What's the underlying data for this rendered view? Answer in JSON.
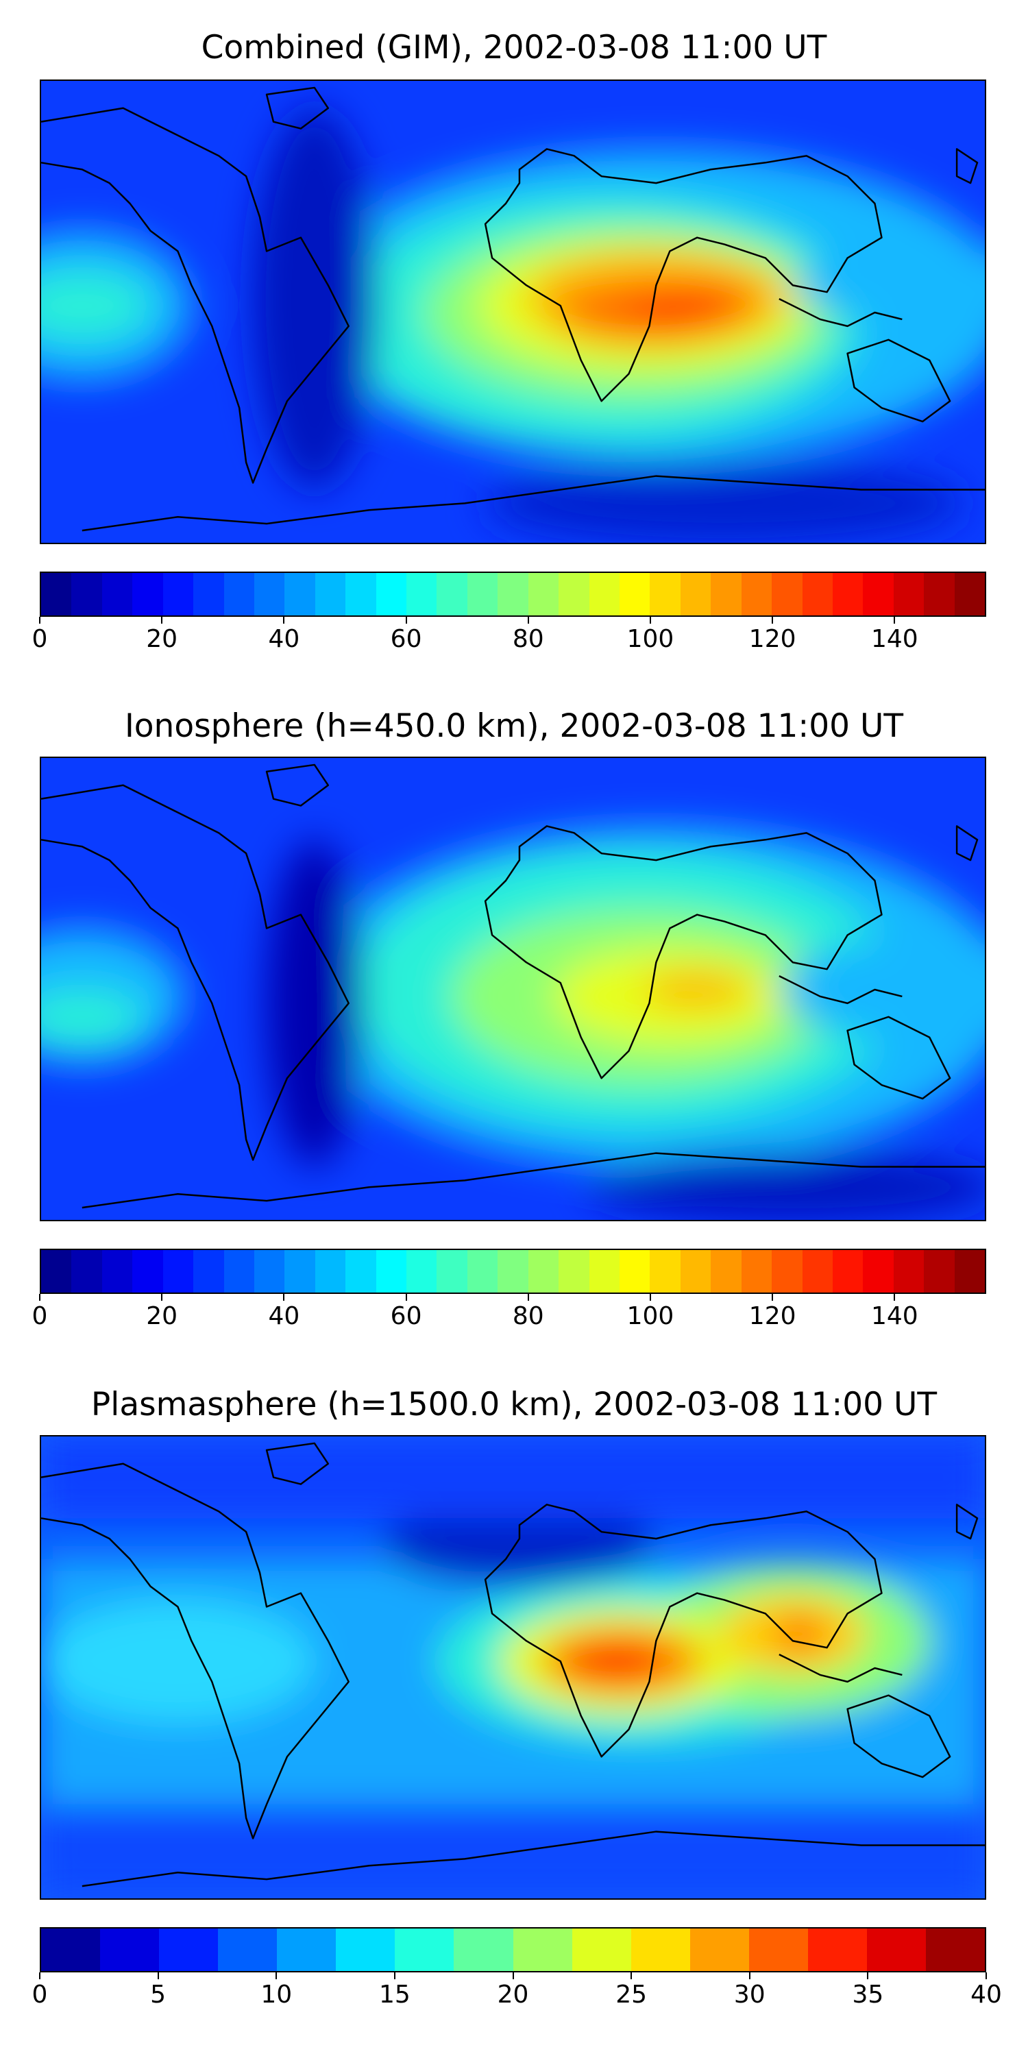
{
  "panels": [
    {
      "title": "Combined (GIM), 2002-03-08 11:00 UT",
      "colorbar": {
        "min": 0,
        "max": 155,
        "levels": 31,
        "ticks": [
          "0",
          "20",
          "40",
          "60",
          "80",
          "100",
          "120",
          "140"
        ],
        "tick_values": [
          0,
          20,
          40,
          60,
          80,
          100,
          120,
          140
        ]
      }
    },
    {
      "title": "Ionosphere  (h=450.0 km), 2002-03-08 11:00 UT",
      "colorbar": {
        "min": 0,
        "max": 155,
        "levels": 31,
        "ticks": [
          "0",
          "20",
          "40",
          "60",
          "80",
          "100",
          "120",
          "140"
        ],
        "tick_values": [
          0,
          20,
          40,
          60,
          80,
          100,
          120,
          140
        ]
      }
    },
    {
      "title": "Plasmasphere (h=1500.0 km), 2002-03-08 11:00 UT",
      "colorbar": {
        "min": 0,
        "max": 40,
        "levels": 16,
        "ticks": [
          "0",
          "5",
          "10",
          "15",
          "20",
          "25",
          "30",
          "35",
          "40"
        ],
        "tick_values": [
          0,
          5,
          10,
          15,
          20,
          25,
          30,
          35,
          40
        ]
      }
    }
  ],
  "colormap": "jet"
}
